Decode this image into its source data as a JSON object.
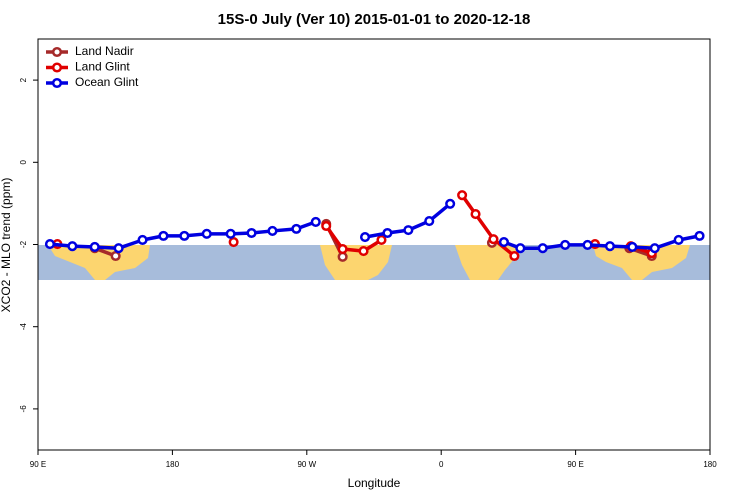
{
  "chart_data": {
    "type": "line",
    "title": "15S-0 July (Ver 10)   2015-01-01 to 2020-12-18",
    "x_label": "Longitude",
    "y_label": "XCO2 - MLO trend (ppm)",
    "xlim": [
      90,
      540
    ],
    "xticks": [
      {
        "value": 90,
        "label": "90 E"
      },
      {
        "value": 180,
        "label": "180"
      },
      {
        "value": 270,
        "label": "90 W"
      },
      {
        "value": 360,
        "label": "0"
      },
      {
        "value": 450,
        "label": "90 E"
      },
      {
        "value": 540,
        "label": "180"
      }
    ],
    "ylim": [
      -7,
      3
    ],
    "yticks": [
      -6,
      -4,
      -2,
      0,
      2
    ],
    "legend": "top-left",
    "series": [
      {
        "name": "Land Nadir",
        "color": "#a52a2a",
        "x": [
          128,
          142,
          null,
          283,
          294,
          null,
          394,
          null,
          486,
          501
        ],
        "values": [
          -2.09,
          -2.28,
          null,
          -1.5,
          -2.3,
          null,
          -1.96,
          null,
          -2.09,
          -2.28
        ]
      },
      {
        "name": "Land Glint",
        "color": "#e00000",
        "x": [
          103,
          null,
          221,
          null,
          283,
          294,
          308,
          320,
          null,
          374,
          383,
          395,
          409,
          null,
          463,
          null,
          487,
          501
        ],
        "values": [
          -1.99,
          null,
          -1.94,
          null,
          -1.55,
          -2.11,
          -2.16,
          -1.89,
          null,
          -0.8,
          -1.26,
          -1.87,
          -2.28,
          null,
          -1.99,
          null,
          -2.04,
          -2.21
        ]
      },
      {
        "name": "Ocean Glint",
        "color": "#0000e0",
        "x": [
          98,
          113,
          128,
          144,
          160,
          174,
          188,
          203,
          219,
          233,
          247,
          263,
          276,
          null,
          309,
          324,
          338,
          352,
          366,
          null,
          402,
          413,
          428,
          443,
          458,
          473,
          488,
          503,
          519,
          533
        ],
        "values": [
          -1.99,
          -2.04,
          -2.06,
          -2.09,
          -1.89,
          -1.79,
          -1.79,
          -1.74,
          -1.74,
          -1.72,
          -1.67,
          -1.62,
          -1.45,
          null,
          -1.82,
          -1.72,
          -1.65,
          -1.43,
          -1.01,
          null,
          -1.94,
          -2.09,
          -2.09,
          -2.01,
          -2.01,
          -2.04,
          -2.06,
          -2.09,
          -1.89,
          -1.79
        ]
      }
    ]
  }
}
